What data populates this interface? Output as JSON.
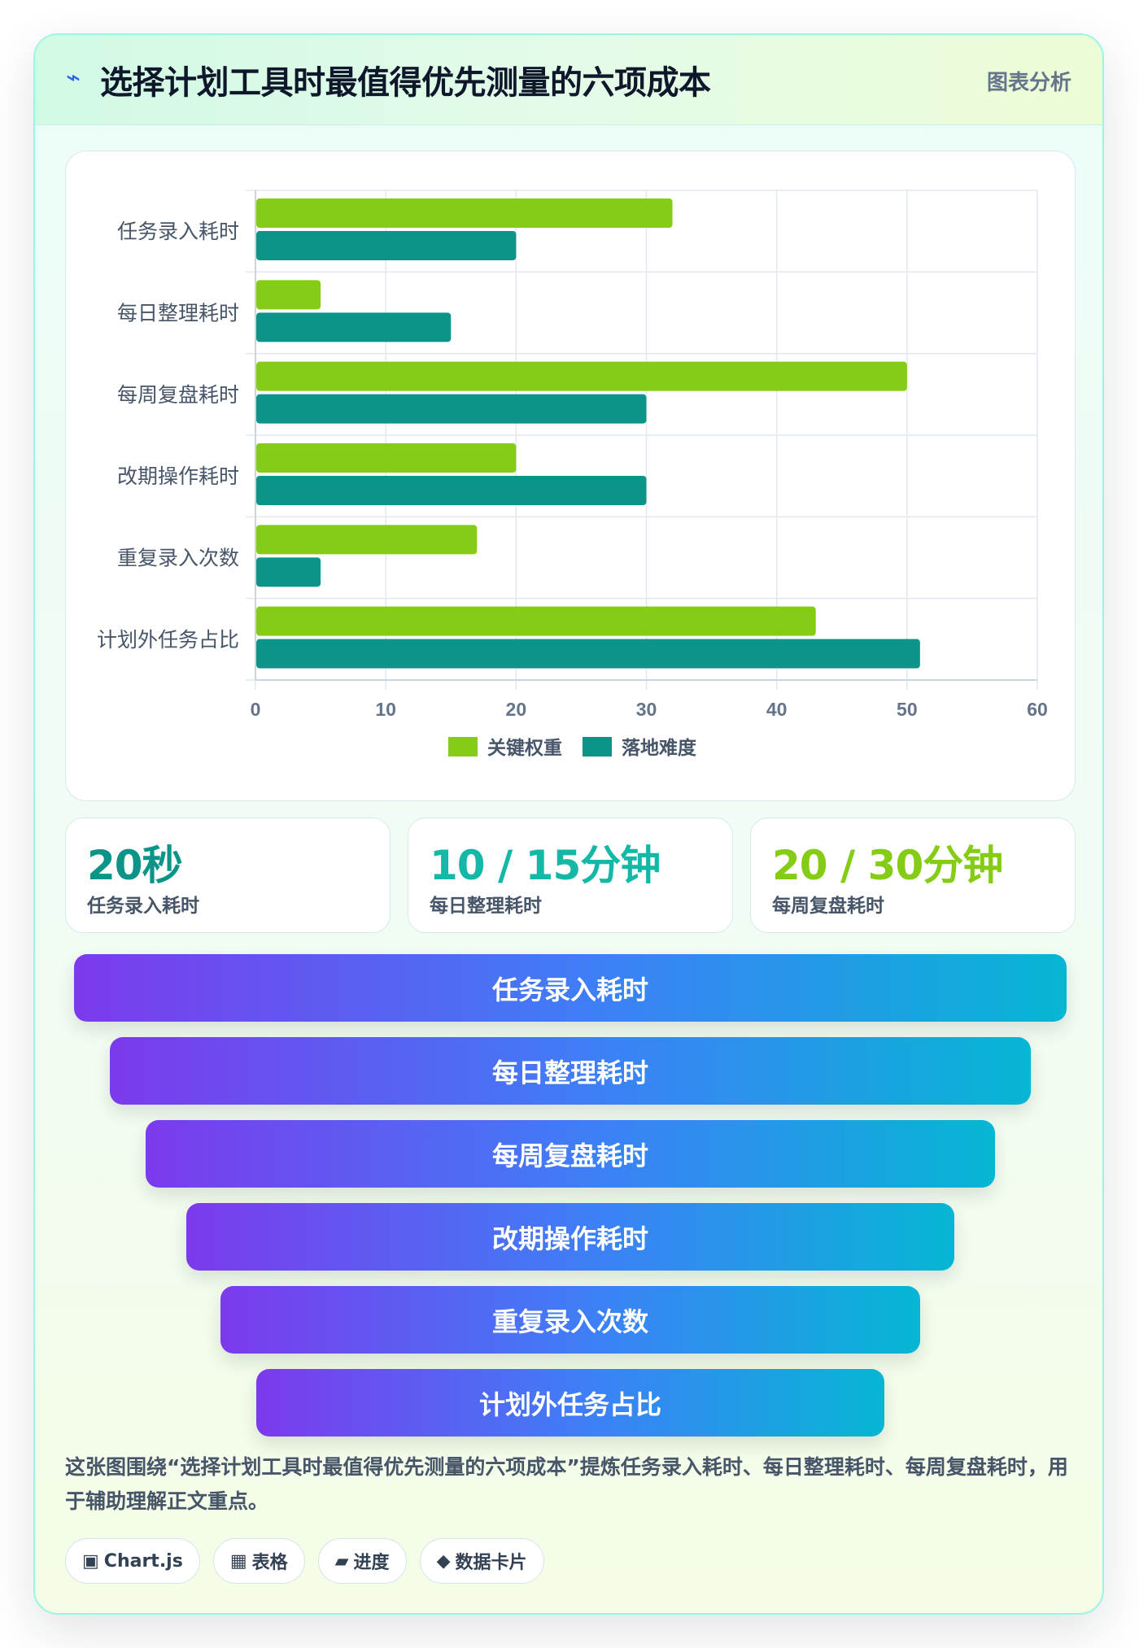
{
  "header": {
    "icon": "bolt-icon",
    "title": "选择计划工具时最值得优先测量的六项成本",
    "tag": "图表分析"
  },
  "chart_data": {
    "type": "bar",
    "orientation": "horizontal",
    "categories": [
      "任务录入耗时",
      "每日整理耗时",
      "每周复盘耗时",
      "改期操作耗时",
      "重复录入次数",
      "计划外任务占比"
    ],
    "series": [
      {
        "name": "关键权重",
        "color": "#84cc16",
        "values": [
          32,
          5,
          50,
          20,
          17,
          43
        ]
      },
      {
        "name": "落地难度",
        "color": "#0d9488",
        "values": [
          20,
          15,
          30,
          30,
          5,
          51
        ]
      }
    ],
    "xlim": [
      0,
      60
    ],
    "xticks": [
      0,
      10,
      20,
      30,
      40,
      50,
      60
    ],
    "grid": true,
    "legend": "bottom-center"
  },
  "stats": [
    {
      "value": "20秒",
      "label": "任务录入耗时",
      "color": "#0d9488"
    },
    {
      "value": "10 / 15分钟",
      "label": "每日整理耗时",
      "color": "#14b8a6"
    },
    {
      "value": "20 / 30分钟",
      "label": "每周复盘耗时",
      "color": "#84cc16"
    }
  ],
  "funnel": [
    "任务录入耗时",
    "每日整理耗时",
    "每周复盘耗时",
    "改期操作耗时",
    "重复录入次数",
    "计划外任务占比"
  ],
  "description": "这张图围绕“选择计划工具时最值得优先测量的六项成本”提炼任务录入耗时、每日整理耗时、每周复盘耗时，用于辅助理解正文重点。",
  "chips": [
    {
      "icon": "▣",
      "label": "Chart.js"
    },
    {
      "icon": "▦",
      "label": "表格"
    },
    {
      "icon": "▰",
      "label": "进度"
    },
    {
      "icon": "◆",
      "label": "数据卡片"
    }
  ]
}
